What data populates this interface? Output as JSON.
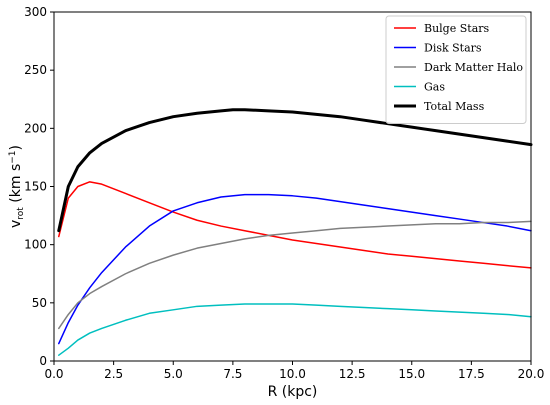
{
  "chart_data": {
    "type": "line",
    "xlabel": "R  (kpc)",
    "ylabel_base": "v",
    "ylabel_sub": "rot",
    "ylabel_unit_open": "  (km s",
    "ylabel_unit_exp": "−1",
    "ylabel_unit_close": ")",
    "xlim": [
      0,
      20
    ],
    "ylim": [
      0,
      300
    ],
    "x_ticks": [
      0,
      2.5,
      5,
      7.5,
      10,
      12.5,
      15,
      17.5,
      20
    ],
    "x_tick_labels": [
      "0.0",
      "2.5",
      "5.0",
      "7.5",
      "10.0",
      "12.5",
      "15.0",
      "17.5",
      "20.0"
    ],
    "y_ticks": [
      0,
      50,
      100,
      150,
      200,
      250,
      300
    ],
    "y_tick_labels": [
      "0",
      "50",
      "100",
      "150",
      "200",
      "250",
      "300"
    ],
    "grid": false,
    "legend_position": "top-right",
    "series": [
      {
        "name": "Bulge Stars",
        "color": "#ff0000",
        "line_width": 1.5,
        "x": [
          0.2,
          0.6,
          1.0,
          1.5,
          2.0,
          3.0,
          4.0,
          5.0,
          6.0,
          7.0,
          8.0,
          9.0,
          10.0,
          11.0,
          12.0,
          13.0,
          14.0,
          15.0,
          16.0,
          17.0,
          18.0,
          19.0,
          20.0
        ],
        "y": [
          107,
          140,
          150,
          154,
          152,
          144,
          136,
          128,
          121,
          116,
          112,
          108,
          104,
          101,
          98,
          95,
          92,
          90,
          88,
          86,
          84,
          82,
          80
        ]
      },
      {
        "name": "Disk Stars",
        "color": "#0000ff",
        "line_width": 1.5,
        "x": [
          0.2,
          0.6,
          1.0,
          1.5,
          2.0,
          3.0,
          4.0,
          5.0,
          6.0,
          7.0,
          8.0,
          9.0,
          10.0,
          11.0,
          12.0,
          13.0,
          14.0,
          15.0,
          16.0,
          17.0,
          18.0,
          19.0,
          20.0
        ],
        "y": [
          15,
          33,
          48,
          63,
          76,
          98,
          116,
          129,
          136,
          141,
          143,
          143,
          142,
          140,
          137,
          134,
          131,
          128,
          125,
          122,
          119,
          116,
          112
        ]
      },
      {
        "name": "Dark Matter Halo",
        "color": "#808080",
        "line_width": 1.5,
        "x": [
          0.2,
          0.6,
          1.0,
          1.5,
          2.0,
          3.0,
          4.0,
          5.0,
          6.0,
          7.0,
          8.0,
          9.0,
          10.0,
          11.0,
          12.0,
          13.0,
          14.0,
          15.0,
          16.0,
          17.0,
          18.0,
          19.0,
          20.0
        ],
        "y": [
          28,
          40,
          50,
          58,
          64,
          75,
          84,
          91,
          97,
          101,
          105,
          108,
          110,
          112,
          114,
          115,
          116,
          117,
          118,
          118,
          119,
          119,
          120
        ]
      },
      {
        "name": "Gas",
        "color": "#00bfbf",
        "line_width": 1.5,
        "x": [
          0.2,
          0.6,
          1.0,
          1.5,
          2.0,
          3.0,
          4.0,
          5.0,
          6.0,
          7.0,
          8.0,
          9.0,
          10.0,
          11.0,
          12.0,
          13.0,
          14.0,
          15.0,
          16.0,
          17.0,
          18.0,
          19.0,
          20.0
        ],
        "y": [
          5,
          11,
          18,
          24,
          28,
          35,
          41,
          44,
          47,
          48,
          49,
          49,
          49,
          48,
          47,
          46,
          45,
          44,
          43,
          42,
          41,
          40,
          38
        ]
      },
      {
        "name": "Total Mass",
        "color": "#000000",
        "line_width": 3,
        "x": [
          0.2,
          0.6,
          1.0,
          1.5,
          2.0,
          3.0,
          4.0,
          5.0,
          6.0,
          7.0,
          7.5,
          8.0,
          9.0,
          10.0,
          11.0,
          12.0,
          13.0,
          14.0,
          15.0,
          16.0,
          17.0,
          18.0,
          19.0,
          20.0
        ],
        "y": [
          112,
          150,
          167,
          179,
          187,
          198,
          205,
          210,
          213,
          215,
          216,
          216,
          215,
          214,
          212,
          210,
          207,
          204,
          201,
          198,
          195,
          192,
          189,
          186
        ]
      }
    ]
  }
}
